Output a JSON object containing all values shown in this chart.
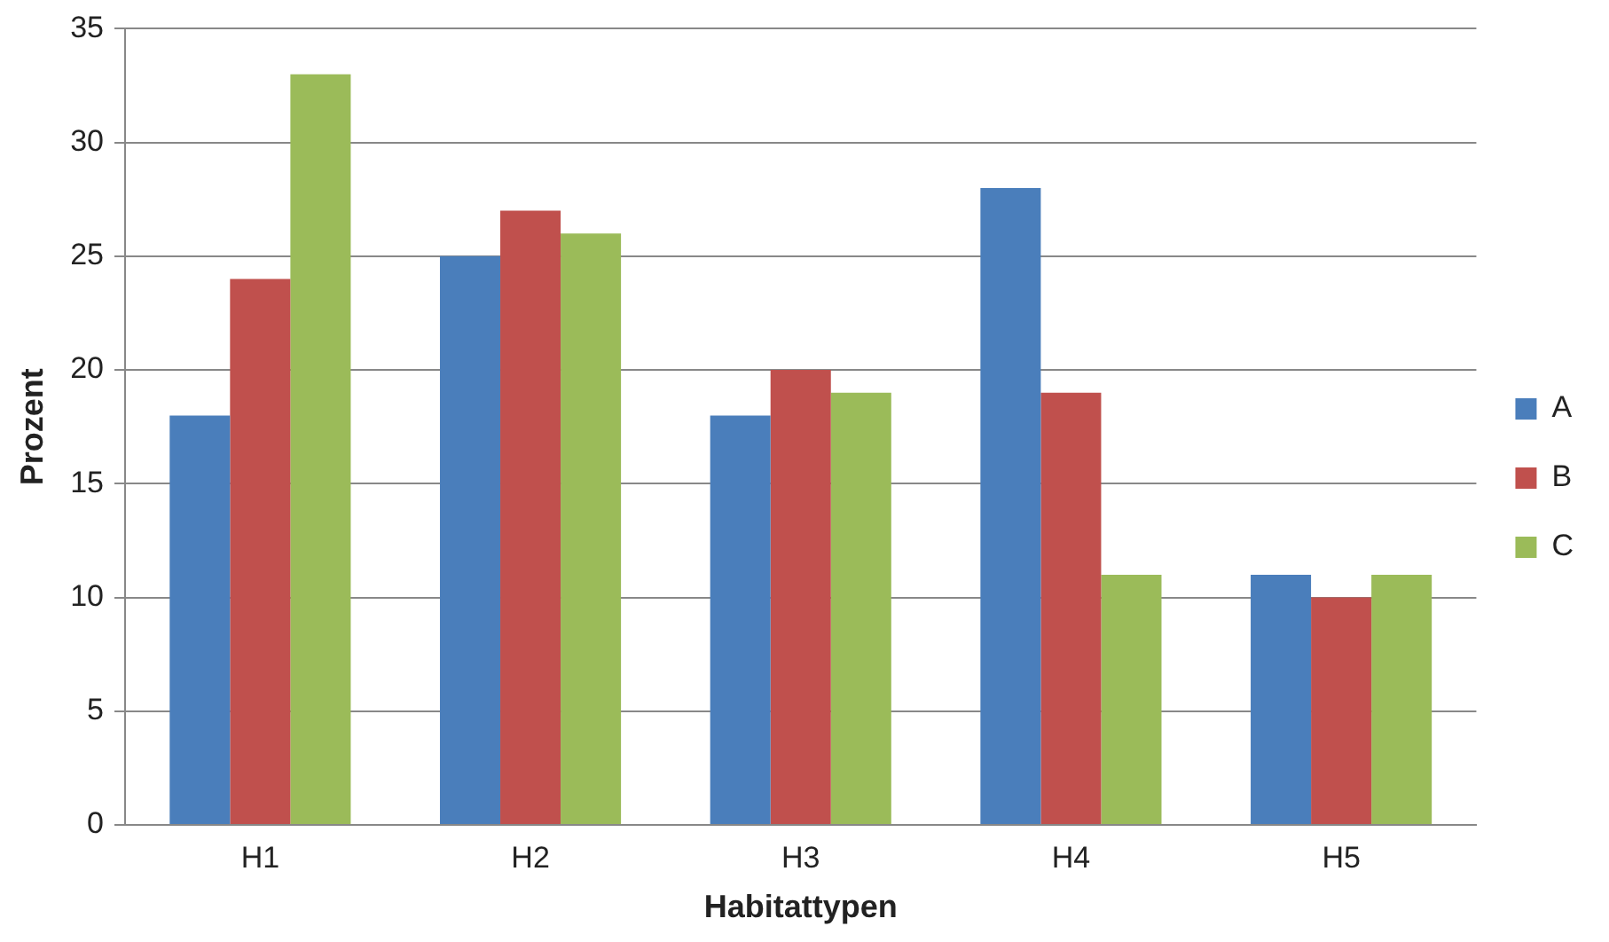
{
  "chart_data": {
    "type": "bar",
    "xlabel": "Habitattypen",
    "ylabel": "Prozent",
    "categories": [
      "H1",
      "H2",
      "H3",
      "H4",
      "H5"
    ],
    "series": [
      {
        "name": "A",
        "color": "#4a7ebb",
        "values": [
          18,
          25,
          18,
          28,
          11
        ]
      },
      {
        "name": "B",
        "color": "#c0504d",
        "values": [
          24,
          27,
          20,
          19,
          10
        ]
      },
      {
        "name": "C",
        "color": "#9bbb59",
        "values": [
          33,
          26,
          19,
          11,
          11
        ]
      }
    ],
    "ylim": [
      0,
      35
    ],
    "yticks": [
      0,
      5,
      10,
      15,
      20,
      25,
      30,
      35
    ],
    "grid": "y",
    "legend": "right"
  }
}
